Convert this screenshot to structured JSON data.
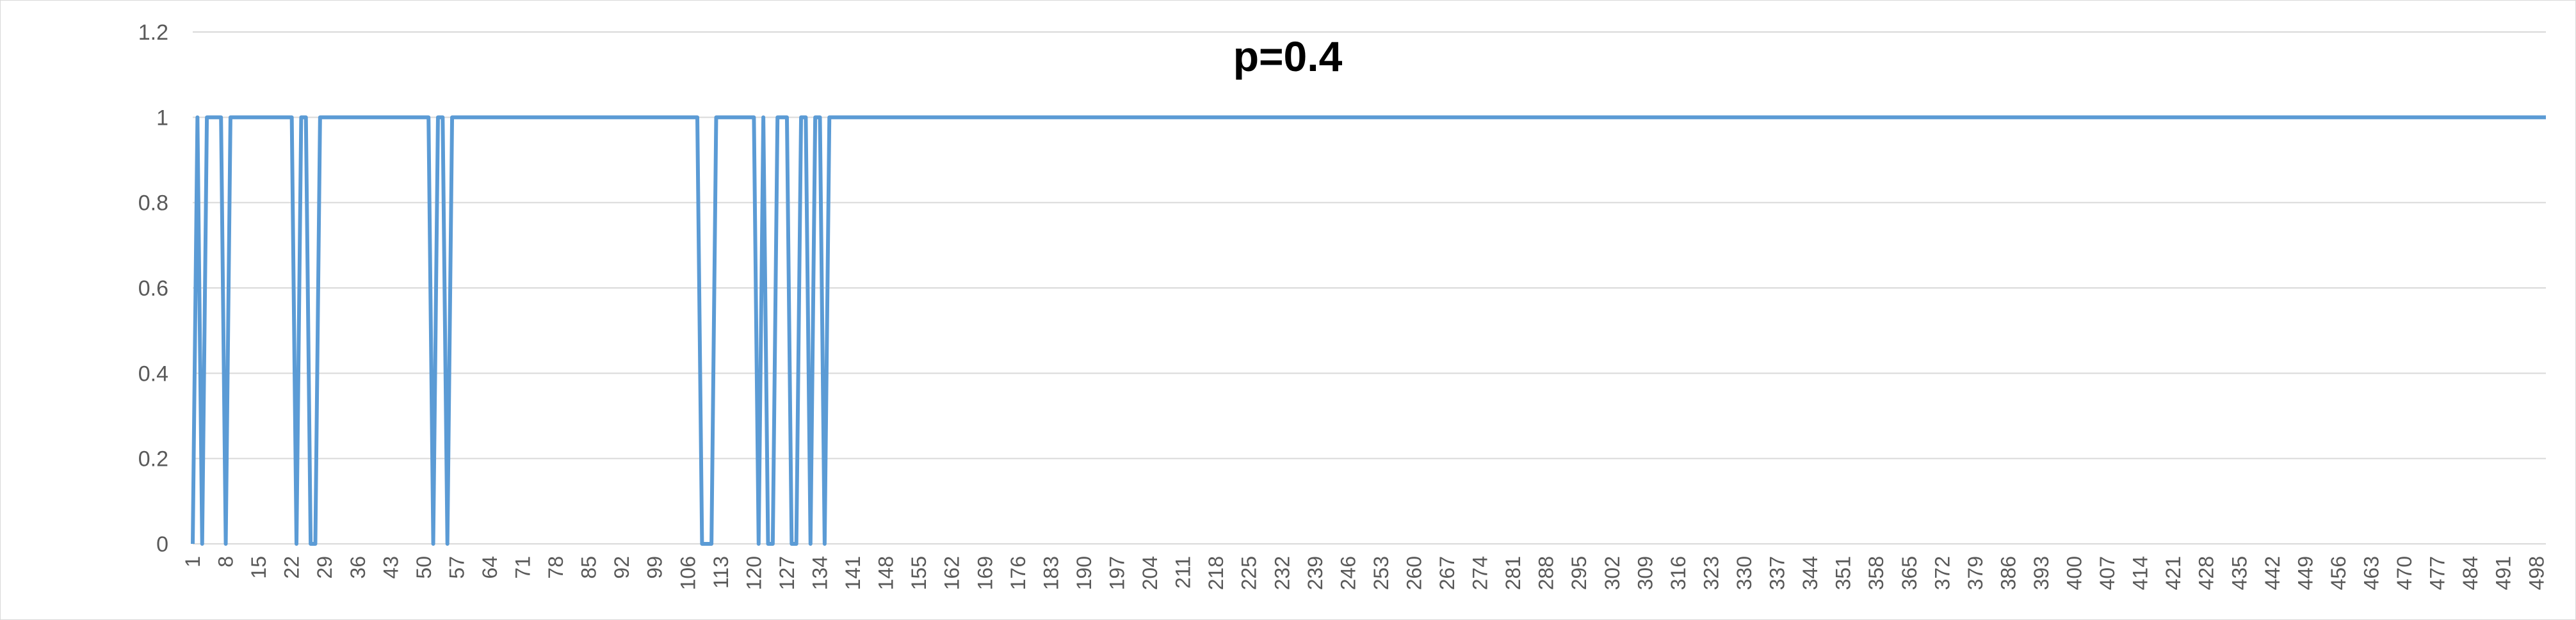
{
  "chart_data": {
    "type": "line",
    "title": "p=0.4",
    "xlabel": "",
    "ylabel": "",
    "ylim": [
      0,
      1.2
    ],
    "y_ticks": [
      "0",
      "0.2",
      "0.4",
      "0.6",
      "0.8",
      "1",
      "1.2"
    ],
    "x_range": [
      1,
      500
    ],
    "x_tick_step": 7,
    "grid": "horizontal",
    "legend": "none",
    "line_color": "#5b9bd5",
    "gridline_color": "#d9d9d9",
    "zero_intervals": [
      [
        1,
        1
      ],
      [
        3,
        3
      ],
      [
        8,
        8
      ],
      [
        23,
        23
      ],
      [
        26,
        27
      ],
      [
        52,
        52
      ],
      [
        55,
        55
      ],
      [
        109,
        111
      ],
      [
        121,
        121
      ],
      [
        123,
        124
      ],
      [
        128,
        129
      ],
      [
        132,
        132
      ],
      [
        135,
        135
      ]
    ],
    "value_outside_intervals": 1
  }
}
